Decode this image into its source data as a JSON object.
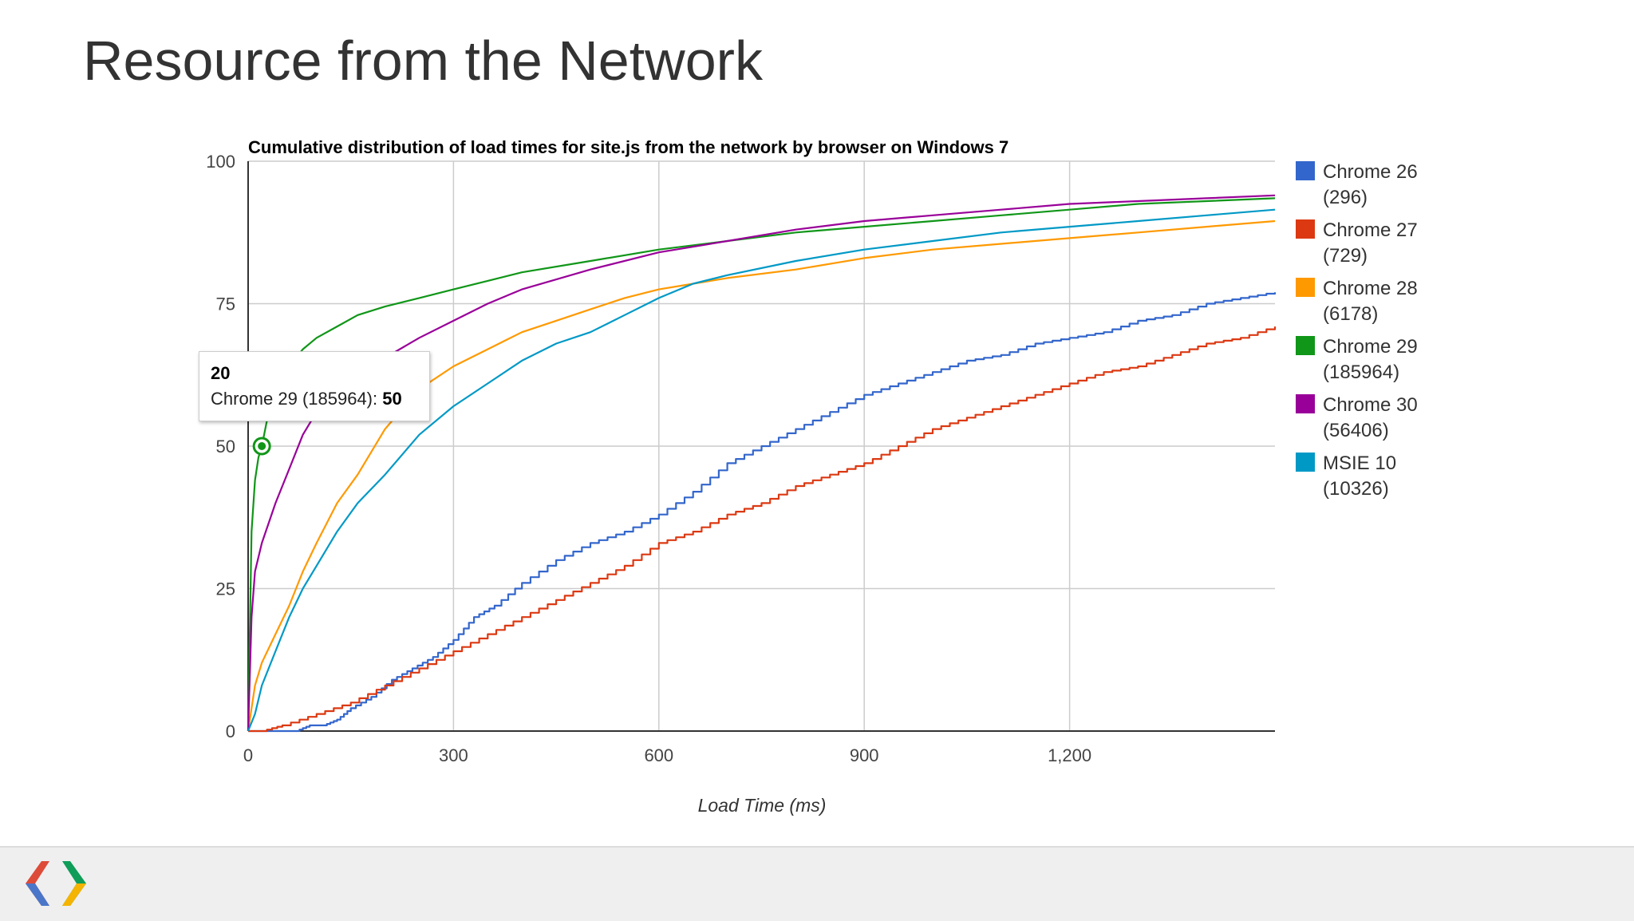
{
  "slide": {
    "title": "Resource from the Network"
  },
  "colors": {
    "background": "#ffffff",
    "footer": "#efefef",
    "grid": "#cccccc",
    "axis": "#333333"
  },
  "chart_data": {
    "type": "line",
    "title": "Cumulative distribution of load times for site.js from the network by browser on Windows 7",
    "xlabel": "Load Time (ms)",
    "ylabel": "",
    "xlim": [
      0,
      1500
    ],
    "ylim": [
      0,
      100
    ],
    "xticks": [
      0,
      300,
      600,
      900,
      1200
    ],
    "xtick_labels": [
      "0",
      "300",
      "600",
      "900",
      "1,200"
    ],
    "yticks": [
      0,
      25,
      50,
      75,
      100
    ],
    "ytick_labels": [
      "0",
      "25",
      "50",
      "75",
      "100"
    ],
    "grid": true,
    "legend_position": "right",
    "series": [
      {
        "name": "Chrome 26",
        "count_label": "(296)",
        "color": "#3366cc",
        "stepped": true,
        "x": [
          0,
          50,
          70,
          90,
          110,
          130,
          150,
          180,
          210,
          240,
          270,
          300,
          330,
          360,
          400,
          450,
          500,
          550,
          600,
          650,
          700,
          750,
          800,
          850,
          900,
          950,
          1000,
          1050,
          1100,
          1150,
          1200,
          1250,
          1300,
          1350,
          1400,
          1450,
          1500
        ],
        "y": [
          0,
          0,
          0,
          1,
          1,
          2,
          4,
          6,
          9,
          11,
          13,
          16,
          20,
          22,
          26,
          30,
          33,
          35,
          38,
          42,
          47,
          50,
          53,
          56,
          59,
          61,
          63,
          65,
          66,
          68,
          69,
          70,
          72,
          73,
          75,
          76,
          77
        ]
      },
      {
        "name": "Chrome 27",
        "count_label": "(729)",
        "color": "#dc3912",
        "stepped": true,
        "x": [
          0,
          20,
          50,
          100,
          150,
          200,
          250,
          300,
          350,
          400,
          450,
          500,
          550,
          600,
          650,
          700,
          750,
          800,
          850,
          900,
          950,
          1000,
          1050,
          1100,
          1150,
          1200,
          1250,
          1300,
          1350,
          1400,
          1450,
          1500
        ],
        "y": [
          0,
          0,
          1,
          3,
          5,
          8,
          11,
          14,
          17,
          20,
          23,
          26,
          29,
          33,
          35,
          38,
          40,
          43,
          45,
          47,
          50,
          53,
          55,
          57,
          59,
          61,
          63,
          64,
          66,
          68,
          69,
          71
        ]
      },
      {
        "name": "Chrome 28",
        "count_label": "(6178)",
        "color": "#ff9900",
        "stepped": false,
        "x": [
          0,
          10,
          20,
          40,
          60,
          80,
          100,
          130,
          160,
          200,
          250,
          300,
          350,
          400,
          450,
          500,
          550,
          600,
          650,
          700,
          800,
          900,
          1000,
          1100,
          1200,
          1300,
          1400,
          1500
        ],
        "y": [
          0,
          8,
          12,
          17,
          22,
          28,
          33,
          40,
          45,
          53,
          60,
          64,
          67,
          70,
          72,
          74,
          76,
          77.5,
          78.5,
          79.5,
          81,
          83,
          84.5,
          85.5,
          86.5,
          87.5,
          88.5,
          89.5
        ]
      },
      {
        "name": "Chrome 29",
        "count_label": "(185964)",
        "color": "#109618",
        "stepped": false,
        "x": [
          0,
          5,
          10,
          15,
          20,
          30,
          40,
          60,
          80,
          100,
          130,
          160,
          200,
          250,
          300,
          350,
          400,
          500,
          600,
          700,
          800,
          900,
          1000,
          1100,
          1200,
          1300,
          1400,
          1500
        ],
        "y": [
          0,
          35,
          44,
          48,
          50,
          56,
          60,
          64,
          67,
          69,
          71,
          73,
          74.5,
          76,
          77.5,
          79,
          80.5,
          82.5,
          84.5,
          86,
          87.5,
          88.5,
          89.5,
          90.5,
          91.5,
          92.5,
          93,
          93.5
        ]
      },
      {
        "name": "Chrome 30",
        "count_label": "(56406)",
        "color": "#990099",
        "stepped": false,
        "x": [
          0,
          5,
          10,
          20,
          40,
          60,
          80,
          100,
          130,
          160,
          200,
          250,
          300,
          350,
          400,
          500,
          600,
          700,
          800,
          900,
          1000,
          1100,
          1200,
          1300,
          1400,
          1500
        ],
        "y": [
          0,
          20,
          28,
          33,
          40,
          46,
          52,
          56,
          60,
          63,
          65.5,
          69,
          72,
          75,
          77.5,
          81,
          84,
          86,
          88,
          89.5,
          90.5,
          91.5,
          92.5,
          93,
          93.5,
          94
        ]
      },
      {
        "name": "MSIE 10",
        "count_label": "(10326)",
        "color": "#0099c6",
        "stepped": false,
        "x": [
          0,
          10,
          20,
          40,
          60,
          80,
          100,
          130,
          160,
          200,
          250,
          300,
          350,
          400,
          450,
          500,
          550,
          600,
          650,
          700,
          800,
          900,
          1000,
          1100,
          1200,
          1300,
          1400,
          1500
        ],
        "y": [
          0,
          3,
          8,
          14,
          20,
          25,
          29,
          35,
          40,
          45,
          52,
          57,
          61,
          65,
          68,
          70,
          73,
          76,
          78.5,
          80,
          82.5,
          84.5,
          86,
          87.5,
          88.5,
          89.5,
          90.5,
          91.5
        ]
      }
    ],
    "tooltip": {
      "x_label": "20",
      "series_label": "Chrome 29 (185964):",
      "value_label": "50",
      "point": [
        20,
        50
      ]
    }
  }
}
